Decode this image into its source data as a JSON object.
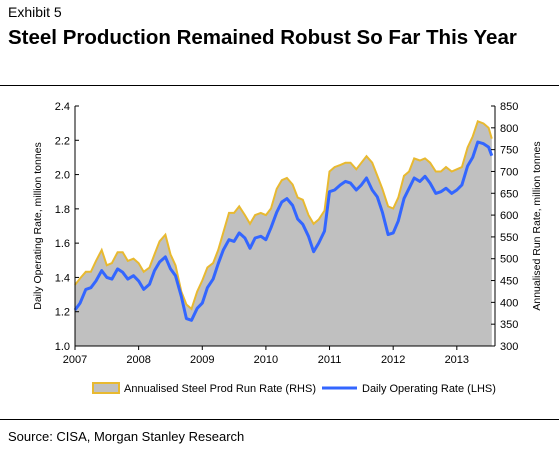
{
  "exhibit": "Exhibit 5",
  "title": "Steel Production Remained Robust So Far This Year",
  "source": "Source: CISA, Morgan Stanley Research",
  "colors": {
    "area_fill": "#c0c0c0",
    "area_edge": "#e8b930",
    "line": "#3366ff",
    "axis": "#000000"
  },
  "chart_data": {
    "type": "area",
    "title": "Steel Production Remained Robust So Far This Year",
    "ylabel_left": "Daily Operating Rate, million tonnes",
    "ylabel_right": "Annualised Run Rate, million tonnes",
    "y_left": {
      "min": 1.0,
      "max": 2.4,
      "ticks": [
        "1.0",
        "1.2",
        "1.4",
        "1.6",
        "1.8",
        "2.0",
        "2.2",
        "2.4"
      ]
    },
    "y_right": {
      "min": 300,
      "max": 850,
      "ticks": [
        "300",
        "350",
        "400",
        "450",
        "500",
        "550",
        "600",
        "650",
        "700",
        "750",
        "800",
        "850"
      ]
    },
    "x": {
      "min": 2007.0,
      "max": 2013.6,
      "tick_labels": [
        "2007",
        "2008",
        "2009",
        "2010",
        "2011",
        "2012",
        "2013"
      ],
      "tick_values": [
        2007,
        2008,
        2009,
        2010,
        2011,
        2012,
        2013
      ]
    },
    "legend_position": "bottom",
    "series": [
      {
        "name": "Annualised Steel Prod Run Rate (RHS)",
        "axis": "right",
        "style": "area",
        "points": [
          [
            2007.0,
            440
          ],
          [
            2007.08,
            455
          ],
          [
            2007.17,
            470
          ],
          [
            2007.25,
            470
          ],
          [
            2007.33,
            495
          ],
          [
            2007.42,
            520
          ],
          [
            2007.5,
            485
          ],
          [
            2007.58,
            490
          ],
          [
            2007.67,
            515
          ],
          [
            2007.75,
            515
          ],
          [
            2007.83,
            495
          ],
          [
            2007.92,
            500
          ],
          [
            2008.0,
            490
          ],
          [
            2008.08,
            470
          ],
          [
            2008.17,
            480
          ],
          [
            2008.25,
            510
          ],
          [
            2008.33,
            540
          ],
          [
            2008.42,
            555
          ],
          [
            2008.5,
            510
          ],
          [
            2008.58,
            485
          ],
          [
            2008.67,
            425
          ],
          [
            2008.75,
            395
          ],
          [
            2008.83,
            385
          ],
          [
            2008.92,
            425
          ],
          [
            2009.0,
            450
          ],
          [
            2009.08,
            480
          ],
          [
            2009.17,
            490
          ],
          [
            2009.25,
            520
          ],
          [
            2009.33,
            560
          ],
          [
            2009.42,
            605
          ],
          [
            2009.5,
            605
          ],
          [
            2009.58,
            620
          ],
          [
            2009.67,
            600
          ],
          [
            2009.75,
            580
          ],
          [
            2009.83,
            600
          ],
          [
            2009.92,
            605
          ],
          [
            2010.0,
            600
          ],
          [
            2010.08,
            615
          ],
          [
            2010.17,
            660
          ],
          [
            2010.25,
            680
          ],
          [
            2010.33,
            685
          ],
          [
            2010.42,
            670
          ],
          [
            2010.5,
            640
          ],
          [
            2010.58,
            635
          ],
          [
            2010.67,
            600
          ],
          [
            2010.75,
            580
          ],
          [
            2010.83,
            590
          ],
          [
            2010.92,
            610
          ],
          [
            2011.0,
            700
          ],
          [
            2011.08,
            710
          ],
          [
            2011.17,
            715
          ],
          [
            2011.25,
            720
          ],
          [
            2011.33,
            720
          ],
          [
            2011.42,
            705
          ],
          [
            2011.5,
            720
          ],
          [
            2011.58,
            735
          ],
          [
            2011.67,
            720
          ],
          [
            2011.75,
            690
          ],
          [
            2011.83,
            660
          ],
          [
            2011.92,
            620
          ],
          [
            2012.0,
            615
          ],
          [
            2012.08,
            640
          ],
          [
            2012.17,
            690
          ],
          [
            2012.25,
            700
          ],
          [
            2012.33,
            730
          ],
          [
            2012.42,
            725
          ],
          [
            2012.5,
            730
          ],
          [
            2012.58,
            720
          ],
          [
            2012.67,
            700
          ],
          [
            2012.75,
            700
          ],
          [
            2012.83,
            710
          ],
          [
            2012.92,
            700
          ],
          [
            2013.0,
            705
          ],
          [
            2013.08,
            710
          ],
          [
            2013.17,
            755
          ],
          [
            2013.25,
            780
          ],
          [
            2013.33,
            815
          ],
          [
            2013.42,
            810
          ],
          [
            2013.5,
            800
          ],
          [
            2013.55,
            775
          ]
        ]
      },
      {
        "name": "Daily Operating Rate (LHS)",
        "axis": "left",
        "style": "line",
        "points": [
          [
            2007.0,
            1.21
          ],
          [
            2007.08,
            1.25
          ],
          [
            2007.17,
            1.33
          ],
          [
            2007.25,
            1.34
          ],
          [
            2007.33,
            1.38
          ],
          [
            2007.42,
            1.44
          ],
          [
            2007.5,
            1.4
          ],
          [
            2007.58,
            1.39
          ],
          [
            2007.67,
            1.45
          ],
          [
            2007.75,
            1.43
          ],
          [
            2007.83,
            1.39
          ],
          [
            2007.92,
            1.41
          ],
          [
            2008.0,
            1.38
          ],
          [
            2008.08,
            1.33
          ],
          [
            2008.17,
            1.36
          ],
          [
            2008.25,
            1.44
          ],
          [
            2008.33,
            1.49
          ],
          [
            2008.42,
            1.52
          ],
          [
            2008.5,
            1.45
          ],
          [
            2008.58,
            1.41
          ],
          [
            2008.67,
            1.29
          ],
          [
            2008.75,
            1.16
          ],
          [
            2008.83,
            1.15
          ],
          [
            2008.92,
            1.22
          ],
          [
            2009.0,
            1.25
          ],
          [
            2009.08,
            1.34
          ],
          [
            2009.17,
            1.39
          ],
          [
            2009.25,
            1.48
          ],
          [
            2009.33,
            1.56
          ],
          [
            2009.42,
            1.62
          ],
          [
            2009.5,
            1.61
          ],
          [
            2009.58,
            1.66
          ],
          [
            2009.67,
            1.63
          ],
          [
            2009.75,
            1.57
          ],
          [
            2009.83,
            1.63
          ],
          [
            2009.92,
            1.64
          ],
          [
            2010.0,
            1.62
          ],
          [
            2010.08,
            1.69
          ],
          [
            2010.17,
            1.78
          ],
          [
            2010.25,
            1.84
          ],
          [
            2010.33,
            1.86
          ],
          [
            2010.42,
            1.82
          ],
          [
            2010.5,
            1.74
          ],
          [
            2010.58,
            1.71
          ],
          [
            2010.67,
            1.64
          ],
          [
            2010.75,
            1.55
          ],
          [
            2010.83,
            1.6
          ],
          [
            2010.92,
            1.67
          ],
          [
            2011.0,
            1.9
          ],
          [
            2011.08,
            1.91
          ],
          [
            2011.17,
            1.94
          ],
          [
            2011.25,
            1.96
          ],
          [
            2011.33,
            1.95
          ],
          [
            2011.42,
            1.91
          ],
          [
            2011.5,
            1.94
          ],
          [
            2011.58,
            1.98
          ],
          [
            2011.67,
            1.91
          ],
          [
            2011.75,
            1.87
          ],
          [
            2011.83,
            1.78
          ],
          [
            2011.92,
            1.65
          ],
          [
            2012.0,
            1.66
          ],
          [
            2012.08,
            1.73
          ],
          [
            2012.17,
            1.86
          ],
          [
            2012.25,
            1.92
          ],
          [
            2012.33,
            1.98
          ],
          [
            2012.42,
            1.96
          ],
          [
            2012.5,
            1.99
          ],
          [
            2012.58,
            1.95
          ],
          [
            2012.67,
            1.89
          ],
          [
            2012.75,
            1.9
          ],
          [
            2012.83,
            1.92
          ],
          [
            2012.92,
            1.89
          ],
          [
            2013.0,
            1.91
          ],
          [
            2013.08,
            1.94
          ],
          [
            2013.17,
            2.05
          ],
          [
            2013.25,
            2.1
          ],
          [
            2013.33,
            2.19
          ],
          [
            2013.42,
            2.18
          ],
          [
            2013.5,
            2.16
          ],
          [
            2013.55,
            2.11
          ]
        ]
      }
    ]
  }
}
